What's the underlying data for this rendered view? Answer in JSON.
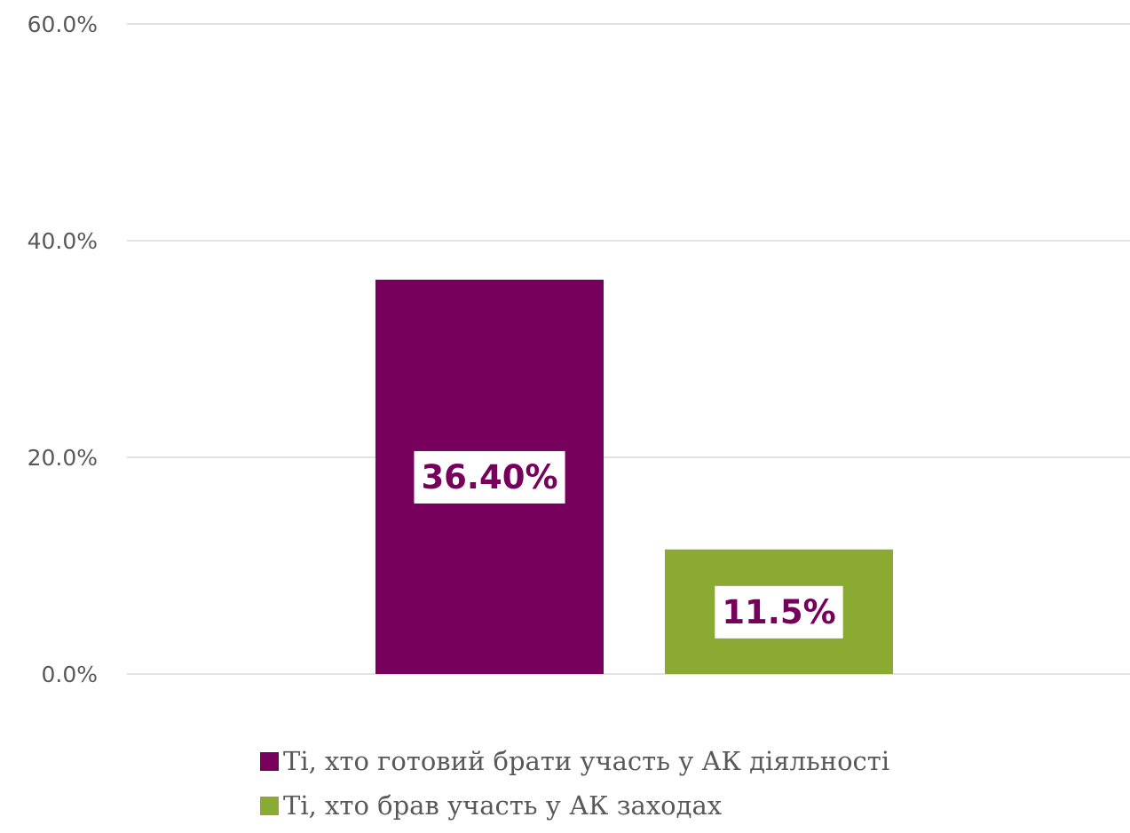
{
  "chart_data": {
    "type": "bar",
    "series": [
      {
        "name": "Ті, хто готовий брати участь у АК діяльності",
        "value": 36.4,
        "label": "36.40%",
        "color": "#77005d"
      },
      {
        "name": "Ті, хто брав участь у АК заходах",
        "value": 11.5,
        "label": "11.5%",
        "color": "#8aaa33"
      }
    ],
    "yticks": [
      "0.0%",
      "20.0%",
      "40.0%",
      "60.0%"
    ],
    "ylim": [
      0,
      60
    ],
    "grid": true,
    "legend_position": "bottom",
    "data_label_color": "#77005d",
    "data_label_background": "#ffffff"
  }
}
